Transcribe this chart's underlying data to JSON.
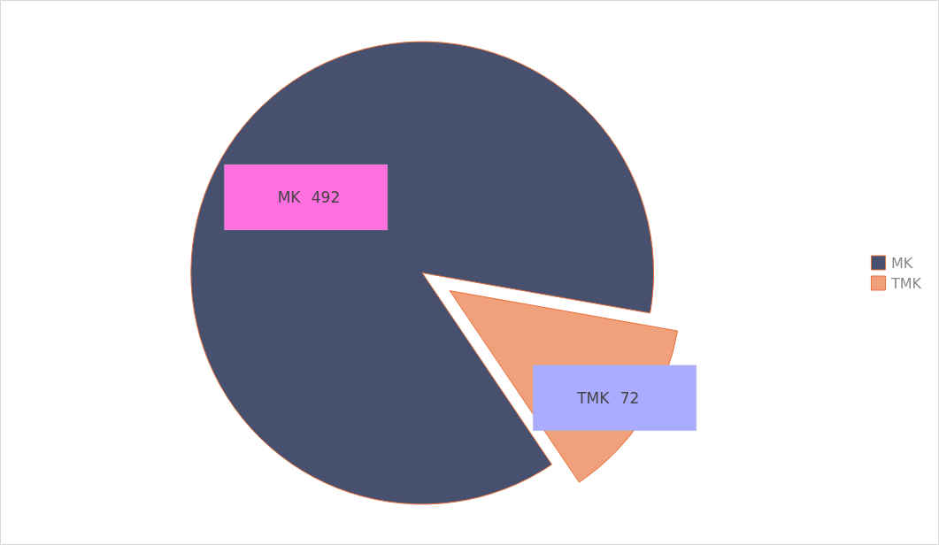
{
  "chart_data": {
    "type": "pie",
    "categories": [
      "MK",
      "TMK"
    ],
    "values": [
      492,
      72
    ],
    "colors": [
      "#47506f",
      "#f0a07a"
    ],
    "data_labels": true,
    "legend": "right"
  }
}
